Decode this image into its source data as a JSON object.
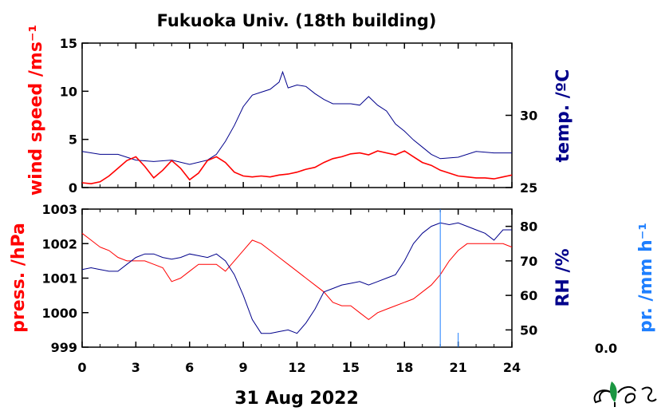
{
  "chart_data": [
    {
      "type": "line",
      "title": "Fukuoka Univ. (18th building)",
      "x_ticks": [
        "0",
        "3",
        "6",
        "9",
        "12",
        "15",
        "18",
        "21",
        "24"
      ],
      "xlim": [
        0,
        24
      ],
      "y_left": {
        "label": "wind speed /ms⁻¹",
        "lim": [
          0,
          15
        ],
        "ticks": [
          "0",
          "5",
          "10",
          "15"
        ],
        "color": "#ff0000"
      },
      "y_right": {
        "label": "temp. /ºC",
        "lim": [
          25,
          35
        ],
        "ticks": [
          "25",
          "30"
        ],
        "color": "#00008b"
      },
      "series": [
        {
          "axis": "right",
          "color": "#00008b",
          "x": [
            0,
            1,
            2,
            3,
            4,
            5,
            6,
            7,
            7.5,
            8,
            8.5,
            9,
            9.5,
            10,
            10.5,
            11,
            11.2,
            11.5,
            12,
            12.5,
            13,
            13.5,
            14,
            14.5,
            15,
            15.5,
            16,
            16.5,
            17,
            17.5,
            18,
            18.5,
            19,
            19.5,
            20,
            21,
            22,
            23,
            24
          ],
          "values": [
            27.5,
            27.3,
            27.3,
            26.9,
            26.8,
            26.9,
            26.6,
            26.9,
            27.3,
            28.2,
            29.3,
            30.6,
            31.4,
            31.6,
            31.8,
            32.3,
            33.0,
            31.9,
            32.1,
            32.0,
            31.5,
            31.1,
            30.8,
            30.8,
            30.8,
            30.7,
            31.3,
            30.7,
            30.3,
            29.4,
            28.9,
            28.3,
            27.8,
            27.3,
            27.0,
            27.1,
            27.5,
            27.4,
            27.4
          ]
        },
        {
          "axis": "left",
          "color": "#ff0000",
          "x": [
            0,
            0.5,
            1,
            1.5,
            2,
            2.5,
            3,
            3.5,
            4,
            4.5,
            5,
            5.5,
            6,
            6.5,
            7,
            7.5,
            8,
            8.5,
            9,
            9.5,
            10,
            10.5,
            11,
            11.5,
            12,
            12.5,
            13,
            13.5,
            14,
            14.5,
            15,
            15.5,
            16,
            16.5,
            17,
            17.5,
            18,
            18.5,
            19,
            19.5,
            20,
            20.5,
            21,
            21.5,
            22,
            22.5,
            23,
            23.5,
            24
          ],
          "values": [
            0.5,
            0.4,
            0.6,
            1.2,
            2,
            2.8,
            3.2,
            2.2,
            1,
            1.8,
            2.8,
            2,
            0.8,
            1.5,
            2.8,
            3.2,
            2.6,
            1.6,
            1.2,
            1.1,
            1.2,
            1.1,
            1.3,
            1.4,
            1.6,
            1.9,
            2.1,
            2.6,
            3,
            3.2,
            3.5,
            3.6,
            3.4,
            3.8,
            3.6,
            3.4,
            3.8,
            3.2,
            2.6,
            2.3,
            1.8,
            1.5,
            1.2,
            1.1,
            1.0,
            1.0,
            0.9,
            1.1,
            1.3
          ]
        }
      ]
    },
    {
      "type": "line",
      "x_ticks": [
        "0",
        "3",
        "6",
        "9",
        "12",
        "15",
        "18",
        "21",
        "24"
      ],
      "xlim": [
        0,
        24
      ],
      "xlabel": "31 Aug 2022",
      "y_left": {
        "label": "press. /hPa",
        "lim": [
          999,
          1003
        ],
        "ticks": [
          "999",
          "1000",
          "1001",
          "1002",
          "1003"
        ],
        "color": "#ff0000"
      },
      "y_right": {
        "label": "RH /%",
        "lim": [
          45,
          85
        ],
        "ticks": [
          "50",
          "60",
          "70",
          "80"
        ],
        "color": "#00008b"
      },
      "y_right2": {
        "label": "pr. /mm h⁻¹",
        "value": "0.0",
        "color": "#1e7fff"
      },
      "series": [
        {
          "axis": "left",
          "color": "#ff0000",
          "x": [
            0,
            0.5,
            1,
            1.5,
            2,
            2.5,
            3,
            3.5,
            4,
            4.5,
            5,
            5.5,
            6,
            6.5,
            7,
            7.5,
            8,
            8.5,
            9,
            9.5,
            10,
            10.5,
            11,
            11.5,
            12,
            12.5,
            13,
            13.5,
            14,
            14.5,
            15,
            15.5,
            16,
            16.5,
            17,
            17.5,
            18,
            18.5,
            19,
            19.5,
            20,
            20.5,
            21,
            21.5,
            22,
            22.5,
            23,
            23.5,
            24
          ],
          "values": [
            1002.3,
            1002.1,
            1001.9,
            1001.8,
            1001.6,
            1001.5,
            1001.5,
            1001.5,
            1001.4,
            1001.3,
            1000.9,
            1001.0,
            1001.2,
            1001.4,
            1001.4,
            1001.4,
            1001.2,
            1001.5,
            1001.8,
            1002.1,
            1002.0,
            1001.8,
            1001.6,
            1001.4,
            1001.2,
            1001.0,
            1000.8,
            1000.6,
            1000.3,
            1000.2,
            1000.2,
            1000.0,
            999.8,
            1000.0,
            1000.1,
            1000.2,
            1000.3,
            1000.4,
            1000.6,
            1000.8,
            1001.1,
            1001.5,
            1001.8,
            1002.0,
            1002.0,
            1002.0,
            1002.0,
            1002.0,
            1001.9
          ]
        },
        {
          "axis": "right",
          "color": "#00008b",
          "x": [
            0,
            0.5,
            1,
            1.5,
            2,
            2.5,
            3,
            3.5,
            4,
            4.5,
            5,
            5.5,
            6,
            6.5,
            7,
            7.5,
            8,
            8.5,
            9,
            9.5,
            10,
            10.5,
            11,
            11.5,
            12,
            12.5,
            13,
            13.5,
            14,
            14.5,
            15,
            15.5,
            16,
            16.5,
            17,
            17.5,
            18,
            18.5,
            19,
            19.5,
            20,
            20.5,
            21,
            21.5,
            22,
            22.5,
            23,
            23.5,
            24
          ],
          "values": [
            67.5,
            68,
            67.5,
            67,
            67,
            69,
            71,
            72,
            72,
            71,
            70.5,
            71,
            72,
            71.5,
            71,
            72,
            70,
            66,
            60,
            53,
            49,
            49,
            49.5,
            50,
            49,
            52,
            56,
            61,
            62,
            63,
            63.5,
            64,
            63,
            64,
            65,
            66,
            70,
            75,
            78,
            80,
            81,
            80.5,
            81,
            80,
            79,
            78,
            76,
            79,
            79
          ]
        },
        {
          "axis": "right2",
          "color": "#1e7fff",
          "x": [
            20,
            21
          ],
          "values": [
            0,
            0
          ]
        }
      ]
    }
  ]
}
